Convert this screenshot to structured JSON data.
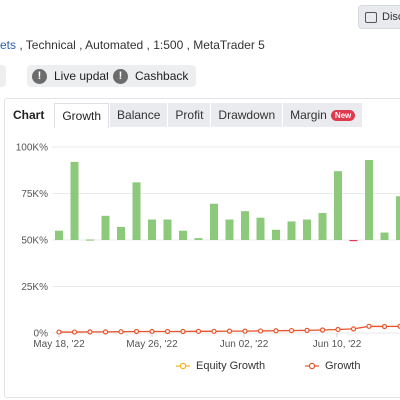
{
  "header": {
    "discuss_button": "Disc",
    "subtitle_link": "ets",
    "subtitle_rest": " , Technical , Automated , 1:500 , MetaTrader 5"
  },
  "chips": [
    {
      "label": "Live update"
    },
    {
      "label": "Cashback"
    }
  ],
  "tabs": {
    "title": "Chart",
    "items": [
      "Growth",
      "Balance",
      "Profit",
      "Drawdown",
      "Margin"
    ],
    "active": "Growth",
    "new_badge": "New"
  },
  "legend": {
    "equity": "Equity Growth",
    "growth": "Growth"
  },
  "colors": {
    "bar_positive": "#8dc97b",
    "bar_negative": "#e0394e",
    "growth_line": "#e8532b",
    "equity_line": "#f2b31b",
    "grid": "#e8eaec"
  },
  "chart_data": {
    "type": "bar",
    "title": "",
    "y_ticks": [
      "0%",
      "25K%",
      "50K%",
      "75K%",
      "100K%"
    ],
    "x_ticks": [
      "May 18, '22",
      "May 26, '22",
      "Jun 02, '22",
      "Jun 10, '22"
    ],
    "ylim": [
      0,
      100000
    ],
    "bar_baseline": 50000,
    "bar_values": [
      55000,
      92000,
      50300,
      63000,
      57000,
      81000,
      61000,
      61000,
      55000,
      51000,
      69500,
      61000,
      65500,
      62000,
      55500,
      60000,
      61000,
      64500,
      87000,
      49500,
      93000,
      54000,
      73500
    ],
    "series": [
      {
        "name": "Growth",
        "type": "line",
        "values": [
          500,
          500,
          600,
          600,
          700,
          800,
          800,
          800,
          800,
          900,
          900,
          1000,
          1000,
          1100,
          1200,
          1300,
          1400,
          1600,
          1900,
          2200,
          3600,
          3500,
          3600
        ]
      },
      {
        "name": "Equity Growth",
        "type": "line",
        "values": []
      }
    ]
  }
}
